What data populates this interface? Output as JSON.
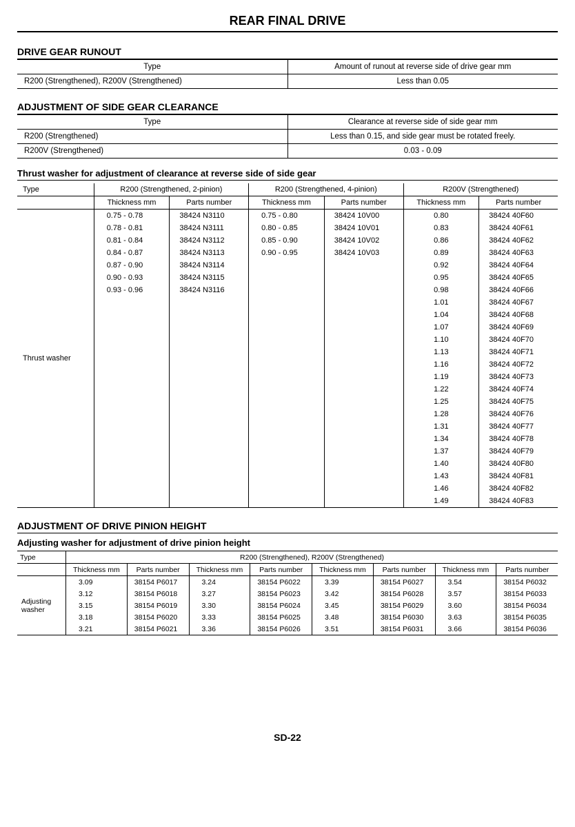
{
  "main_title": "REAR FINAL DRIVE",
  "page_number": "SD-22",
  "sections": {
    "runout": {
      "title": "DRIVE GEAR RUNOUT",
      "col1": "Type",
      "col2": "Amount of runout at reverse side of drive gear   mm",
      "rows": [
        [
          "R200 (Strengthened), R200V (Strengthened)",
          "Less than 0.05"
        ]
      ]
    },
    "clearance": {
      "title": "ADJUSTMENT OF SIDE GEAR CLEARANCE",
      "col1": "Type",
      "col2": "Clearance at reverse side of side gear   mm",
      "rows": [
        [
          "R200 (Strengthened)",
          "Less than 0.15, and side gear must be rotated freely."
        ],
        [
          "R200V (Strengthened)",
          "0.03 - 0.09"
        ]
      ]
    },
    "thrust": {
      "title": "Thrust washer for adjustment of clearance at reverse side of side gear",
      "type_hdr": "Type",
      "row_label": "Thrust washer",
      "groups": {
        "g1": "R200 (Strengthened, 2-pinion)",
        "g2": "R200 (Strengthened, 4-pinion)",
        "g3": "R200V (Strengthened)"
      },
      "sub": {
        "thick": "Thickness   mm",
        "part": "Parts number"
      },
      "g1_data": [
        [
          "0.75 - 0.78",
          "38424 N3110"
        ],
        [
          "0.78 - 0.81",
          "38424 N3111"
        ],
        [
          "0.81 - 0.84",
          "38424 N3112"
        ],
        [
          "0.84 - 0.87",
          "38424 N3113"
        ],
        [
          "0.87 - 0.90",
          "38424 N3114"
        ],
        [
          "0.90 - 0.93",
          "38424 N3115"
        ],
        [
          "0.93 - 0.96",
          "38424 N3116"
        ]
      ],
      "g2_data": [
        [
          "0.75 - 0.80",
          "38424 10V00"
        ],
        [
          "0.80 - 0.85",
          "38424 10V01"
        ],
        [
          "0.85 - 0.90",
          "38424 10V02"
        ],
        [
          "0.90 - 0.95",
          "38424 10V03"
        ]
      ],
      "g3_data": [
        [
          "0.80",
          "38424 40F60"
        ],
        [
          "0.83",
          "38424 40F61"
        ],
        [
          "0.86",
          "38424 40F62"
        ],
        [
          "0.89",
          "38424 40F63"
        ],
        [
          "0.92",
          "38424 40F64"
        ],
        [
          "0.95",
          "38424 40F65"
        ],
        [
          "0.98",
          "38424 40F66"
        ],
        [
          "1.01",
          "38424 40F67"
        ],
        [
          "1.04",
          "38424 40F68"
        ],
        [
          "1.07",
          "38424 40F69"
        ],
        [
          "1.10",
          "38424 40F70"
        ],
        [
          "1.13",
          "38424 40F71"
        ],
        [
          "1.16",
          "38424 40F72"
        ],
        [
          "1.19",
          "38424 40F73"
        ],
        [
          "1.22",
          "38424 40F74"
        ],
        [
          "1.25",
          "38424 40F75"
        ],
        [
          "1.28",
          "38424 40F76"
        ],
        [
          "1.31",
          "38424 40F77"
        ],
        [
          "1.34",
          "38424 40F78"
        ],
        [
          "1.37",
          "38424 40F79"
        ],
        [
          "1.40",
          "38424 40F80"
        ],
        [
          "1.43",
          "38424 40F81"
        ],
        [
          "1.46",
          "38424 40F82"
        ],
        [
          "1.49",
          "38424 40F83"
        ]
      ]
    },
    "pinion": {
      "title": "ADJUSTMENT OF DRIVE PINION HEIGHT",
      "subtitle": "Adjusting washer for adjustment of drive pinion height",
      "type_hdr": "Type",
      "span_hdr": "R200 (Strengthened), R200V (Strengthened)",
      "row_label": "Adjusting washer",
      "sub": {
        "thick": "Thickness   mm",
        "part": "Parts number"
      },
      "cols": [
        [
          [
            "3.09",
            "38154 P6017"
          ],
          [
            "3.12",
            "38154 P6018"
          ],
          [
            "3.15",
            "38154 P6019"
          ],
          [
            "3.18",
            "38154 P6020"
          ],
          [
            "3.21",
            "38154 P6021"
          ]
        ],
        [
          [
            "3.24",
            "38154 P6022"
          ],
          [
            "3.27",
            "38154 P6023"
          ],
          [
            "3.30",
            "38154 P6024"
          ],
          [
            "3.33",
            "38154 P6025"
          ],
          [
            "3.36",
            "38154 P6026"
          ]
        ],
        [
          [
            "3.39",
            "38154 P6027"
          ],
          [
            "3.42",
            "38154 P6028"
          ],
          [
            "3.45",
            "38154 P6029"
          ],
          [
            "3.48",
            "38154 P6030"
          ],
          [
            "3.51",
            "38154 P6031"
          ]
        ],
        [
          [
            "3.54",
            "38154 P6032"
          ],
          [
            "3.57",
            "38154 P6033"
          ],
          [
            "3.60",
            "38154 P6034"
          ],
          [
            "3.63",
            "38154 P6035"
          ],
          [
            "3.66",
            "38154 P6036"
          ]
        ]
      ]
    }
  }
}
